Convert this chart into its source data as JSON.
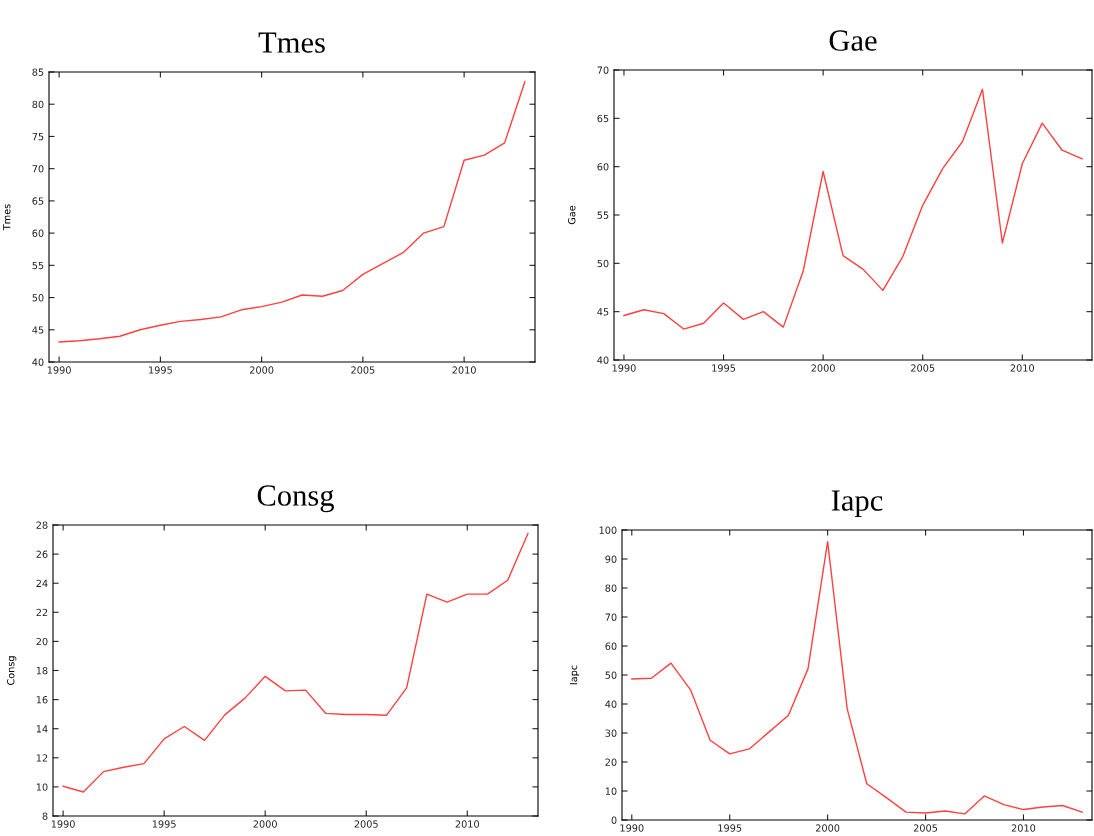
{
  "chart_data": [
    {
      "type": "line",
      "title": "Tmes",
      "ylabel": "Tmes",
      "x": [
        1990,
        1991,
        1992,
        1993,
        1994,
        1995,
        1996,
        1997,
        1998,
        1999,
        2000,
        2001,
        2002,
        2003,
        2004,
        2005,
        2006,
        2007,
        2008,
        2009,
        2010,
        2011,
        2012,
        2013
      ],
      "xlim": [
        1989.5,
        2013.5
      ],
      "xticks": [
        1990,
        1995,
        2000,
        2005,
        2010
      ],
      "ylim": [
        40,
        85
      ],
      "yticks": [
        40,
        45,
        50,
        55,
        60,
        65,
        70,
        75,
        80,
        85
      ],
      "grid": false,
      "legend": false,
      "series": [
        {
          "color": "#ff4040",
          "values": [
            43.1,
            43.3,
            43.6,
            44.0,
            45.0,
            45.7,
            46.3,
            46.6,
            47.0,
            48.1,
            48.6,
            49.3,
            50.4,
            50.2,
            51.1,
            53.6,
            55.3,
            57.0,
            60.0,
            61.0,
            71.3,
            72.1,
            74.0,
            83.5
          ]
        }
      ]
    },
    {
      "type": "line",
      "title": "Gae",
      "ylabel": "Gae",
      "x": [
        1990,
        1991,
        1992,
        1993,
        1994,
        1995,
        1996,
        1997,
        1998,
        1999,
        2000,
        2001,
        2002,
        2003,
        2004,
        2005,
        2006,
        2007,
        2008,
        2009,
        2010,
        2011,
        2012,
        2013
      ],
      "xlim": [
        1989.5,
        2013.5
      ],
      "xticks": [
        1990,
        1995,
        2000,
        2005,
        2010
      ],
      "ylim": [
        40,
        70
      ],
      "yticks": [
        40,
        45,
        50,
        55,
        60,
        65,
        70
      ],
      "grid": false,
      "legend": false,
      "series": [
        {
          "color": "#ff4040",
          "values": [
            44.6,
            45.2,
            44.8,
            43.2,
            43.8,
            45.9,
            44.2,
            45.0,
            43.4,
            49.2,
            59.5,
            50.8,
            49.4,
            47.2,
            50.7,
            56.0,
            59.8,
            62.6,
            68.0,
            52.1,
            60.3,
            64.5,
            61.7,
            60.8
          ]
        }
      ]
    },
    {
      "type": "line",
      "title": "Consg",
      "ylabel": "Consg",
      "x": [
        1990,
        1991,
        1992,
        1993,
        1994,
        1995,
        1996,
        1997,
        1998,
        1999,
        2000,
        2001,
        2002,
        2003,
        2004,
        2005,
        2006,
        2007,
        2008,
        2009,
        2010,
        2011,
        2012,
        2013
      ],
      "xlim": [
        1989.5,
        2013.5
      ],
      "xticks": [
        1990,
        1995,
        2000,
        2005,
        2010
      ],
      "ylim": [
        8,
        28
      ],
      "yticks": [
        8,
        10,
        12,
        14,
        16,
        18,
        20,
        22,
        24,
        26,
        28
      ],
      "grid": false,
      "legend": false,
      "series": [
        {
          "color": "#ff4040",
          "values": [
            10.05,
            9.65,
            11.05,
            11.35,
            11.6,
            13.3,
            14.15,
            13.2,
            14.95,
            16.1,
            17.6,
            16.6,
            16.65,
            15.05,
            14.98,
            14.98,
            14.92,
            16.8,
            23.25,
            22.7,
            23.25,
            23.25,
            24.2,
            27.4
          ]
        }
      ]
    },
    {
      "type": "line",
      "title": "Iapc",
      "ylabel": "Iapc",
      "x": [
        1990,
        1991,
        1992,
        1993,
        1994,
        1995,
        1996,
        1997,
        1998,
        1999,
        2000,
        2001,
        2002,
        2003,
        2004,
        2005,
        2006,
        2007,
        2008,
        2009,
        2010,
        2011,
        2012,
        2013
      ],
      "xlim": [
        1989.5,
        2013.5
      ],
      "xticks": [
        1990,
        1995,
        2000,
        2005,
        2010
      ],
      "ylim": [
        0,
        100
      ],
      "yticks": [
        0,
        10,
        20,
        30,
        40,
        50,
        60,
        70,
        80,
        90,
        100
      ],
      "grid": false,
      "legend": false,
      "series": [
        {
          "color": "#ff4040",
          "values": [
            48.6,
            48.9,
            54.1,
            44.9,
            27.5,
            22.8,
            24.5,
            30.3,
            36.1,
            52.2,
            96.0,
            38.3,
            12.5,
            7.7,
            2.7,
            2.4,
            3.1,
            2.1,
            8.3,
            5.3,
            3.6,
            4.5,
            5.0,
            2.7
          ]
        }
      ]
    }
  ]
}
